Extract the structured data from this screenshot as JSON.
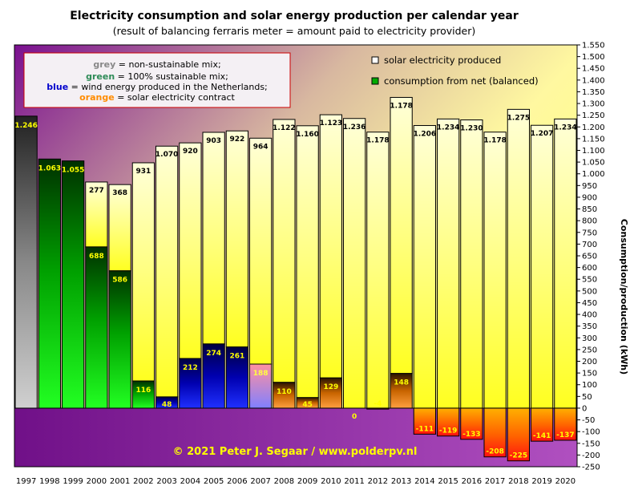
{
  "chart_data": {
    "type": "bar",
    "title": "Electricity consumption  and solar energy production per calendar year",
    "subtitle": "(result of balancing  ferraris  meter  =  amount  paid  to electricity provider)",
    "ylabel": "Consumption/production (kWh)",
    "ylim": [
      -250,
      1550
    ],
    "ytick_step": 50,
    "grid": false,
    "categories": [
      "1997",
      "1998",
      "1999",
      "2000",
      "2001",
      "2002",
      "2003",
      "2004",
      "2005",
      "2006",
      "2007",
      "2008",
      "2009",
      "2010",
      "2011",
      "2012",
      "2013",
      "2014",
      "2015",
      "2016",
      "2017",
      "2018",
      "2019",
      "2020"
    ],
    "series": [
      {
        "name": "solar electricity produced",
        "values": [
          null,
          null,
          null,
          277,
          368,
          931,
          1070,
          920,
          903,
          922,
          964,
          1122,
          1160,
          1123,
          1236,
          1178,
          1178,
          1206,
          1234,
          1230,
          1178,
          1275,
          1207,
          1234
        ],
        "labels": [
          "",
          "",
          "",
          "277",
          "368",
          "931",
          "1.070",
          "920",
          "903",
          "922",
          "964",
          "1.122",
          "1.160",
          "1.123",
          "1.236",
          "1.178",
          "1.178",
          "1.206",
          "1.234",
          "1.230",
          "1.178",
          "1.275",
          "1.207",
          "1.234"
        ]
      },
      {
        "name": "consumption from net (balanced)",
        "values": [
          1246,
          1063,
          1055,
          688,
          586,
          116,
          48,
          212,
          274,
          261,
          188,
          110,
          45,
          129,
          0,
          -4,
          148,
          -111,
          -119,
          -133,
          -208,
          -225,
          -141,
          -137
        ],
        "labels": [
          "1.246",
          "1.063",
          "1.055",
          "688",
          "586",
          "116",
          "48",
          "212",
          "274",
          "261",
          "188",
          "110",
          "45",
          "129",
          "0",
          "-4",
          "148",
          "-111",
          "-119",
          "-133",
          "-208",
          "-225",
          "-141",
          "-137"
        ],
        "mix": [
          "grey",
          "green",
          "green",
          "green",
          "green",
          "green",
          "blue",
          "blue",
          "blue",
          "blue",
          "blue",
          "orange",
          "orange",
          "orange",
          "orange",
          "orange",
          "orange",
          "orange",
          "orange",
          "orange",
          "orange",
          "orange",
          "orange",
          "orange"
        ]
      }
    ],
    "legend_position": "top-right"
  },
  "notes": [
    {
      "key": "grey",
      "rest": " = non-sustainable mix;",
      "color": "#888888"
    },
    {
      "key": "green",
      "rest": " = 100%  sustainable mix;",
      "color": "#2e8b57"
    },
    {
      "key": "blue",
      "rest": " = wind energy produced in the Netherlands;",
      "color": "#0000cc"
    },
    {
      "key": "orange",
      "rest": " = solar electricity contract",
      "color": "#ff8c00"
    }
  ],
  "copyright": "© 2021  Peter  J. Segaar  /  www.polderpv.nl",
  "colors": {
    "grey": "#a8a8a8",
    "green": "#00dd00",
    "blue": "#1010ee",
    "orange": "#ff8800",
    "solar": "#ffff60"
  }
}
